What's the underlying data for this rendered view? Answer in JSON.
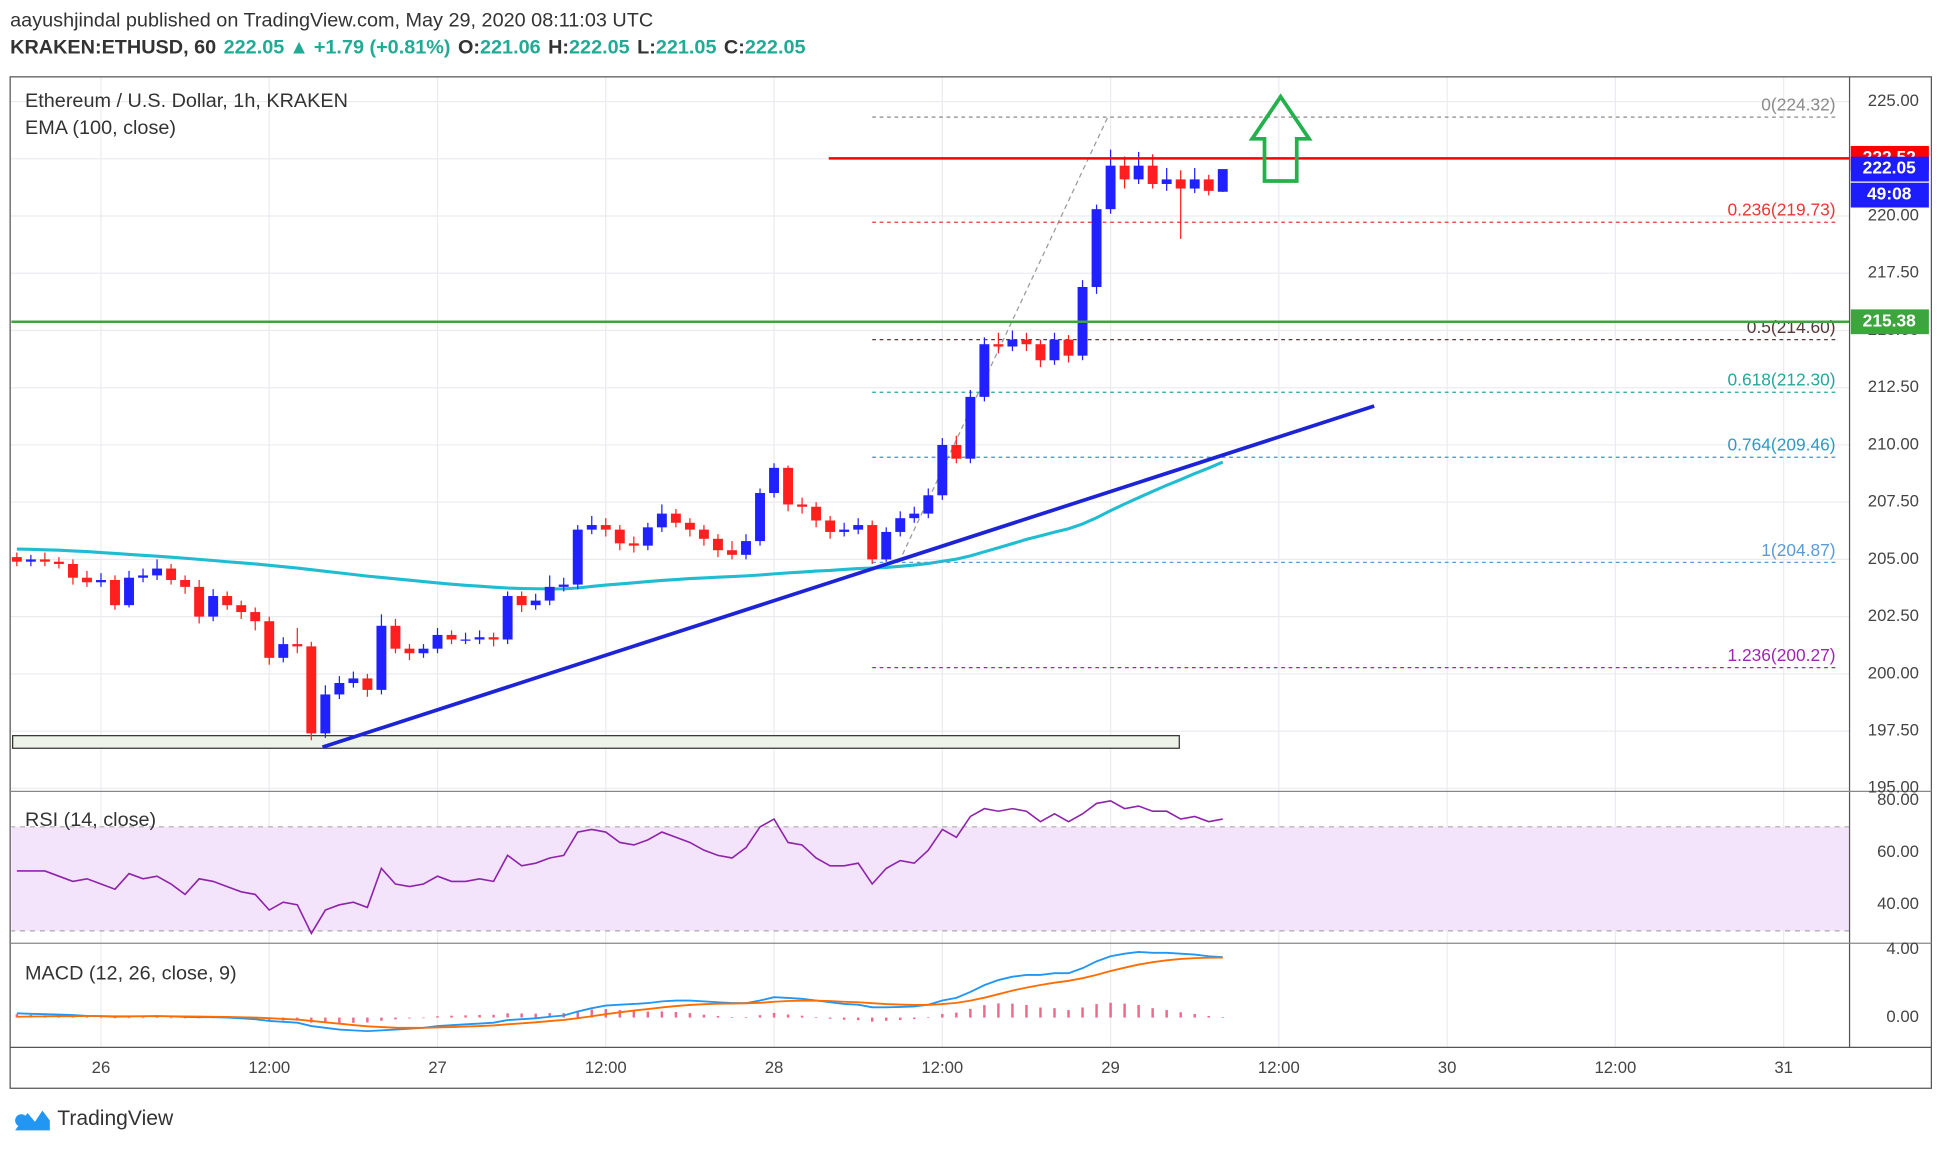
{
  "header": {
    "byline": "aayushjindal published on TradingView.com, May 29, 2020 08:11:03 UTC",
    "symbol": "KRAKEN:ETHUSD, 60",
    "arrow": "▲",
    "change": "+1.79 (+0.81%)",
    "o_label": "O:",
    "h_label": "H:",
    "l_label": "L:",
    "c_label": "C:"
  },
  "chart_data": [
    {
      "type": "candlestick",
      "title": "Ethereum / U.S. Dollar, 1h, KRAKEN",
      "up_color": "#2121ff",
      "down_color": "#ff1f1f",
      "candles": [
        [
          205.1,
          205.3,
          204.7,
          204.9
        ],
        [
          204.9,
          205.2,
          204.7,
          205.0
        ],
        [
          205.0,
          205.3,
          204.7,
          204.9
        ],
        [
          204.9,
          205.1,
          204.6,
          204.8
        ],
        [
          204.8,
          205.0,
          203.9,
          204.2
        ],
        [
          204.2,
          204.5,
          203.8,
          204.0
        ],
        [
          204.0,
          204.4,
          203.8,
          204.1
        ],
        [
          204.1,
          204.3,
          202.8,
          203.0
        ],
        [
          203.0,
          204.5,
          202.9,
          204.2
        ],
        [
          204.2,
          204.6,
          204.0,
          204.3
        ],
        [
          204.3,
          205.0,
          204.1,
          204.6
        ],
        [
          204.6,
          204.8,
          203.9,
          204.1
        ],
        [
          204.1,
          204.3,
          203.5,
          203.8
        ],
        [
          203.8,
          204.1,
          202.2,
          202.5
        ],
        [
          202.5,
          203.7,
          202.3,
          203.4
        ],
        [
          203.4,
          203.6,
          202.8,
          203.0
        ],
        [
          203.0,
          203.2,
          202.4,
          202.7
        ],
        [
          202.7,
          202.9,
          201.9,
          202.3
        ],
        [
          202.3,
          202.5,
          200.4,
          200.7
        ],
        [
          200.7,
          201.6,
          200.5,
          201.3
        ],
        [
          201.3,
          202.0,
          200.9,
          201.2
        ],
        [
          201.2,
          201.4,
          197.1,
          197.4
        ],
        [
          197.4,
          199.5,
          197.2,
          199.1
        ],
        [
          199.1,
          199.9,
          198.9,
          199.6
        ],
        [
          199.6,
          200.1,
          199.4,
          199.8
        ],
        [
          199.8,
          200.0,
          199.0,
          199.3
        ],
        [
          199.3,
          202.6,
          199.1,
          202.1
        ],
        [
          202.1,
          202.4,
          200.9,
          201.1
        ],
        [
          201.1,
          201.3,
          200.6,
          200.9
        ],
        [
          200.9,
          201.3,
          200.7,
          201.1
        ],
        [
          201.1,
          202.0,
          200.9,
          201.7
        ],
        [
          201.7,
          201.9,
          201.3,
          201.5
        ],
        [
          201.5,
          201.8,
          201.3,
          201.5
        ],
        [
          201.5,
          201.9,
          201.3,
          201.6
        ],
        [
          201.6,
          201.8,
          201.2,
          201.5
        ],
        [
          201.5,
          203.6,
          201.3,
          203.4
        ],
        [
          203.4,
          203.6,
          202.7,
          203.0
        ],
        [
          203.0,
          203.5,
          202.8,
          203.2
        ],
        [
          203.2,
          204.3,
          203.0,
          203.8
        ],
        [
          203.8,
          204.2,
          203.6,
          203.9
        ],
        [
          203.9,
          206.5,
          203.7,
          206.3
        ],
        [
          206.3,
          206.9,
          206.1,
          206.5
        ],
        [
          206.5,
          206.8,
          206.0,
          206.3
        ],
        [
          206.3,
          206.5,
          205.4,
          205.7
        ],
        [
          205.7,
          206.0,
          205.3,
          205.6
        ],
        [
          205.6,
          206.6,
          205.4,
          206.4
        ],
        [
          206.4,
          207.4,
          206.2,
          207.0
        ],
        [
          207.0,
          207.2,
          206.4,
          206.6
        ],
        [
          206.6,
          206.8,
          206.0,
          206.3
        ],
        [
          206.3,
          206.5,
          205.6,
          205.9
        ],
        [
          205.9,
          206.1,
          205.1,
          205.4
        ],
        [
          205.4,
          205.8,
          205.0,
          205.2
        ],
        [
          205.2,
          206.1,
          205.0,
          205.8
        ],
        [
          205.8,
          208.1,
          205.6,
          207.9
        ],
        [
          207.9,
          209.2,
          207.7,
          209.0
        ],
        [
          209.0,
          209.1,
          207.1,
          207.4
        ],
        [
          207.4,
          207.7,
          207.0,
          207.3
        ],
        [
          207.3,
          207.5,
          206.4,
          206.7
        ],
        [
          206.7,
          206.9,
          205.9,
          206.2
        ],
        [
          206.2,
          206.6,
          206.0,
          206.3
        ],
        [
          206.3,
          206.8,
          206.1,
          206.5
        ],
        [
          206.5,
          206.7,
          204.8,
          205.0
        ],
        [
          205.0,
          206.4,
          204.9,
          206.2
        ],
        [
          206.2,
          207.1,
          206.0,
          206.8
        ],
        [
          206.8,
          207.3,
          206.6,
          207.0
        ],
        [
          207.0,
          208.1,
          206.8,
          207.8
        ],
        [
          207.8,
          210.3,
          207.6,
          210.0
        ],
        [
          210.0,
          210.4,
          209.2,
          209.4
        ],
        [
          209.4,
          212.4,
          209.2,
          212.1
        ],
        [
          212.1,
          214.7,
          211.9,
          214.4
        ],
        [
          214.4,
          214.9,
          214.0,
          214.3
        ],
        [
          214.3,
          215.0,
          214.1,
          214.6
        ],
        [
          214.6,
          214.9,
          214.1,
          214.4
        ],
        [
          214.4,
          214.6,
          213.4,
          213.7
        ],
        [
          213.7,
          214.9,
          213.5,
          214.6
        ],
        [
          214.6,
          214.8,
          213.6,
          213.9
        ],
        [
          213.9,
          217.2,
          213.7,
          216.9
        ],
        [
          216.9,
          220.5,
          216.6,
          220.3
        ],
        [
          220.3,
          222.9,
          220.1,
          222.2
        ],
        [
          222.2,
          222.6,
          221.2,
          221.6
        ],
        [
          221.6,
          222.8,
          221.4,
          222.2
        ],
        [
          222.2,
          222.7,
          221.2,
          221.4
        ],
        [
          221.4,
          222.1,
          221.1,
          221.6
        ],
        [
          221.6,
          222.0,
          219.0,
          221.2
        ],
        [
          221.2,
          222.1,
          221.0,
          221.6
        ],
        [
          221.6,
          221.8,
          220.9,
          221.1
        ],
        [
          221.06,
          222.05,
          221.05,
          222.05
        ]
      ],
      "xlim": [
        -0.3,
        130.7
      ],
      "xticks": [
        {
          "value": 6,
          "label": "26"
        },
        {
          "value": 18,
          "label": "12:00"
        },
        {
          "value": 30,
          "label": "27"
        },
        {
          "value": 42,
          "label": "12:00"
        },
        {
          "value": 54,
          "label": "28"
        },
        {
          "value": 66,
          "label": "12:00"
        },
        {
          "value": 78,
          "label": "29"
        },
        {
          "value": 90,
          "label": "12:00"
        },
        {
          "value": 102,
          "label": "30"
        },
        {
          "value": 114,
          "label": "12:00"
        },
        {
          "value": 126,
          "label": "31"
        }
      ],
      "ylim": [
        195,
        226.08
      ],
      "yticks": [
        {
          "value": 195,
          "label": "195.00"
        },
        {
          "value": 197.5,
          "label": "197.50"
        },
        {
          "value": 200,
          "label": "200.00"
        },
        {
          "value": 202.5,
          "label": "202.50"
        },
        {
          "value": 205,
          "label": "205.00"
        },
        {
          "value": 207.5,
          "label": "207.50"
        },
        {
          "value": 210,
          "label": "210.00"
        },
        {
          "value": 212.5,
          "label": "212.50"
        },
        {
          "value": 215,
          "label": "215.00"
        },
        {
          "value": 217.5,
          "label": "217.50"
        },
        {
          "value": 220,
          "label": "220.00"
        },
        {
          "value": 222.5,
          "label": "222.50"
        },
        {
          "value": 225,
          "label": "225.00"
        }
      ],
      "grid": true,
      "ema": {
        "name": "EMA (100, close)",
        "color": "#1fbcd2",
        "values": [
          205.45,
          205.44,
          205.42,
          205.4,
          205.37,
          205.34,
          205.3,
          205.26,
          205.22,
          205.18,
          205.14,
          205.1,
          205.05,
          205.0,
          204.95,
          204.9,
          204.85,
          204.8,
          204.74,
          204.68,
          204.62,
          204.55,
          204.48,
          204.41,
          204.34,
          204.27,
          204.21,
          204.15,
          204.09,
          204.03,
          203.97,
          203.92,
          203.87,
          203.83,
          203.79,
          203.75,
          203.73,
          203.72,
          203.71,
          203.71,
          203.75,
          203.82,
          203.88,
          203.93,
          203.98,
          204.03,
          204.08,
          204.12,
          204.16,
          204.19,
          204.22,
          204.25,
          204.28,
          204.32,
          204.37,
          204.41,
          204.45,
          204.49,
          204.52,
          204.56,
          204.6,
          204.62,
          204.65,
          204.7,
          204.75,
          204.82,
          204.92,
          205.01,
          205.15,
          205.33,
          205.51,
          205.69,
          205.87,
          206.03,
          206.19,
          206.34,
          206.55,
          206.82,
          207.13,
          207.42,
          207.7,
          207.97,
          208.24,
          208.49,
          208.75,
          208.99,
          209.25
        ]
      },
      "resistance": {
        "value": 222.52,
        "color": "#ff0000",
        "x_start": 57.9
      },
      "support": {
        "value": 215.38,
        "color": "#3da53d"
      },
      "last_price_color": "#1c1cff",
      "countdown": "49:08",
      "fib": {
        "anchor": {
          "x": [
            62.9,
            77.8
          ],
          "y": [
            204.87,
            224.32
          ]
        },
        "x": [
          61,
          129.7
        ],
        "levels": [
          {
            "label": "0(224.32)",
            "value": 224.32,
            "color": "#8a8a8a"
          },
          {
            "label": "0.236(219.73)",
            "value": 219.73,
            "color": "#e53935"
          },
          {
            "label": "0.5(214.60)",
            "value": 214.6,
            "color": "#5a3a3a"
          },
          {
            "label": "0.618(212.30)",
            "value": 212.3,
            "color": "#26a69a"
          },
          {
            "label": "0.764(209.46)",
            "value": 209.46,
            "color": "#2e9bc4"
          },
          {
            "label": "1(204.87)",
            "value": 204.87,
            "color": "#5a9bd6"
          },
          {
            "label": "1.236(200.27)",
            "value": 200.27,
            "color": "#9c27b0"
          }
        ]
      },
      "trendline": {
        "color": "#1d24d6",
        "x": [
          21.8,
          96.8
        ],
        "y": [
          196.8,
          211.7
        ]
      },
      "zone": {
        "x": [
          -0.3,
          82.9
        ],
        "y": [
          196.75,
          197.3
        ]
      }
    },
    {
      "type": "line",
      "title": "RSI (14, close)",
      "color": "#8e24aa",
      "values": [
        53,
        53,
        53,
        51,
        49,
        50,
        48,
        46,
        52,
        50,
        51,
        48,
        44,
        50,
        49,
        47,
        45,
        44,
        38,
        41,
        40,
        29,
        38,
        40,
        41,
        39,
        54,
        48,
        47,
        48,
        51,
        49,
        49,
        50,
        49,
        59,
        55,
        56,
        58,
        59,
        68,
        69,
        68,
        64,
        63,
        65,
        68,
        66,
        64,
        61,
        59,
        58,
        62,
        70,
        73,
        64,
        63,
        58,
        55,
        55,
        56,
        48,
        54,
        57,
        56,
        61,
        69,
        66,
        74,
        77,
        76,
        77,
        76,
        72,
        75,
        72,
        75,
        79,
        80,
        77,
        78,
        76,
        76,
        73,
        74,
        72,
        73
      ],
      "ylim": [
        25.7,
        82.9
      ],
      "yticks": [
        {
          "value": 40,
          "label": "40.00"
        },
        {
          "value": 60,
          "label": "60.00"
        },
        {
          "value": 80,
          "label": "80.00"
        }
      ],
      "band": [
        30,
        70
      ],
      "band_color": "#f3e3fb"
    },
    {
      "type": "macd",
      "title": "MACD (12, 26, close, 9)",
      "macd": {
        "color": "#2196f3",
        "values": [
          0.25,
          0.22,
          0.2,
          0.18,
          0.15,
          0.1,
          0.08,
          0.05,
          0.07,
          0.08,
          0.09,
          0.07,
          0.03,
          0.02,
          0.02,
          0.0,
          -0.05,
          -0.1,
          -0.2,
          -0.25,
          -0.3,
          -0.5,
          -0.6,
          -0.7,
          -0.75,
          -0.8,
          -0.75,
          -0.7,
          -0.65,
          -0.6,
          -0.5,
          -0.45,
          -0.4,
          -0.35,
          -0.3,
          -0.15,
          -0.1,
          -0.05,
          0.05,
          0.12,
          0.35,
          0.55,
          0.7,
          0.75,
          0.8,
          0.85,
          0.95,
          1.0,
          1.0,
          0.95,
          0.9,
          0.85,
          0.85,
          1.0,
          1.2,
          1.15,
          1.1,
          1.0,
          0.9,
          0.8,
          0.75,
          0.6,
          0.6,
          0.62,
          0.65,
          0.75,
          1.0,
          1.15,
          1.5,
          1.9,
          2.2,
          2.4,
          2.5,
          2.5,
          2.6,
          2.6,
          2.9,
          3.3,
          3.6,
          3.75,
          3.85,
          3.8,
          3.8,
          3.75,
          3.7,
          3.6,
          3.55
        ]
      },
      "signal": {
        "color": "#ff6d00",
        "values": [
          0.05,
          0.06,
          0.07,
          0.08,
          0.08,
          0.09,
          0.09,
          0.08,
          0.08,
          0.08,
          0.08,
          0.08,
          0.07,
          0.06,
          0.05,
          0.04,
          0.02,
          0.0,
          -0.04,
          -0.08,
          -0.12,
          -0.2,
          -0.28,
          -0.36,
          -0.44,
          -0.51,
          -0.56,
          -0.59,
          -0.6,
          -0.6,
          -0.58,
          -0.56,
          -0.53,
          -0.5,
          -0.46,
          -0.4,
          -0.34,
          -0.28,
          -0.21,
          -0.14,
          -0.04,
          0.08,
          0.2,
          0.31,
          0.41,
          0.5,
          0.59,
          0.67,
          0.74,
          0.78,
          0.81,
          0.82,
          0.83,
          0.86,
          0.93,
          0.97,
          0.99,
          0.99,
          0.97,
          0.93,
          0.9,
          0.84,
          0.79,
          0.76,
          0.74,
          0.74,
          0.79,
          0.86,
          0.99,
          1.17,
          1.37,
          1.58,
          1.76,
          1.91,
          2.05,
          2.16,
          2.31,
          2.51,
          2.73,
          2.93,
          3.11,
          3.25,
          3.36,
          3.44,
          3.49,
          3.51,
          3.52
        ]
      },
      "histogram": {
        "color": "#ec6a8c",
        "values": [
          0.2,
          0.16,
          0.13,
          0.1,
          0.07,
          0.01,
          -0.01,
          -0.03,
          -0.01,
          0,
          0.01,
          -0.01,
          -0.04,
          -0.04,
          -0.03,
          -0.04,
          -0.07,
          -0.1,
          -0.16,
          -0.17,
          -0.18,
          -0.3,
          -0.32,
          -0.34,
          -0.31,
          -0.29,
          -0.19,
          -0.11,
          -0.05,
          0,
          0.08,
          0.11,
          0.13,
          0.15,
          0.16,
          0.25,
          0.24,
          0.23,
          0.26,
          0.26,
          0.39,
          0.47,
          0.5,
          0.44,
          0.39,
          0.35,
          0.36,
          0.33,
          0.26,
          0.17,
          0.09,
          0.03,
          0.02,
          0.14,
          0.27,
          0.18,
          0.11,
          0.01,
          -0.07,
          -0.13,
          -0.15,
          -0.24,
          -0.19,
          -0.14,
          -0.09,
          0.01,
          0.21,
          0.29,
          0.51,
          0.73,
          0.83,
          0.82,
          0.74,
          0.59,
          0.55,
          0.44,
          0.59,
          0.79,
          0.87,
          0.82,
          0.74,
          0.55,
          0.44,
          0.31,
          0.21,
          0.09,
          0.03
        ]
      },
      "ylim": [
        -1.75,
        4.29
      ],
      "yticks": [
        {
          "value": 0,
          "label": "0.00"
        },
        {
          "value": 4,
          "label": "4.00"
        }
      ]
    }
  ],
  "footer": {
    "brand": "TradingView"
  }
}
